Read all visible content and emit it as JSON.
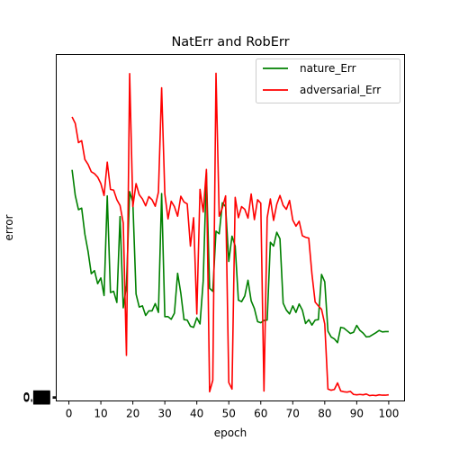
{
  "chart_data": {
    "type": "line",
    "title": "NatErr and RobErr",
    "xlabel": "epoch",
    "ylabel": "error",
    "xlim": [
      -3.95,
      104.95
    ],
    "ylim": [
      -0.004,
      0.9
    ],
    "xticks": [
      0,
      10,
      20,
      30,
      40,
      50,
      60,
      70,
      80,
      90,
      100
    ],
    "yticks": [
      0.003,
      0.005,
      0.007
    ],
    "ytick_labels": [
      "0.██",
      "0.██",
      "0.██"
    ],
    "grid": false,
    "legend": "top-right",
    "x": [
      1,
      2,
      3,
      4,
      5,
      6,
      7,
      8,
      9,
      10,
      11,
      12,
      13,
      14,
      15,
      16,
      17,
      18,
      19,
      20,
      21,
      22,
      23,
      24,
      25,
      26,
      27,
      28,
      29,
      30,
      31,
      32,
      33,
      34,
      35,
      36,
      37,
      38,
      39,
      40,
      41,
      42,
      43,
      44,
      45,
      46,
      47,
      48,
      49,
      50,
      51,
      52,
      53,
      54,
      55,
      56,
      57,
      58,
      59,
      60,
      61,
      62,
      63,
      64,
      65,
      66,
      67,
      68,
      69,
      70,
      71,
      72,
      73,
      74,
      75,
      76,
      77,
      78,
      79,
      80,
      81,
      82,
      83,
      84,
      85,
      86,
      87,
      88,
      89,
      90,
      91,
      92,
      93,
      94,
      95,
      96,
      97,
      98,
      99,
      100
    ],
    "series": [
      {
        "name": "nature_Err",
        "color": "#008000",
        "values": [
          0.599,
          0.532,
          0.495,
          0.499,
          0.431,
          0.386,
          0.328,
          0.336,
          0.302,
          0.317,
          0.271,
          0.531,
          0.279,
          0.282,
          0.253,
          0.477,
          0.239,
          0.297,
          0.542,
          0.515,
          0.275,
          0.241,
          0.244,
          0.219,
          0.231,
          0.231,
          0.25,
          0.227,
          0.537,
          0.216,
          0.216,
          0.209,
          0.225,
          0.329,
          0.277,
          0.208,
          0.207,
          0.191,
          0.188,
          0.213,
          0.197,
          0.309,
          0.592,
          0.29,
          0.282,
          0.439,
          0.432,
          0.513,
          0.503,
          0.36,
          0.426,
          0.4,
          0.259,
          0.255,
          0.27,
          0.311,
          0.257,
          0.237,
          0.203,
          0.2,
          0.206,
          0.207,
          0.41,
          0.4,
          0.436,
          0.419,
          0.251,
          0.233,
          0.223,
          0.244,
          0.227,
          0.249,
          0.233,
          0.198,
          0.208,
          0.194,
          0.207,
          0.208,
          0.326,
          0.307,
          0.178,
          0.163,
          0.158,
          0.148,
          0.188,
          0.186,
          0.179,
          0.172,
          0.175,
          0.193,
          0.18,
          0.173,
          0.163,
          0.164,
          0.169,
          0.174,
          0.18,
          0.176,
          0.177,
          0.177
        ]
      },
      {
        "name": "adversarial_Err",
        "color": "#ff0000",
        "values": [
          0.737,
          0.72,
          0.67,
          0.675,
          0.626,
          0.613,
          0.594,
          0.589,
          0.58,
          0.563,
          0.532,
          0.619,
          0.548,
          0.546,
          0.521,
          0.506,
          0.46,
          0.115,
          0.85,
          0.503,
          0.563,
          0.534,
          0.523,
          0.505,
          0.529,
          0.521,
          0.504,
          0.541,
          0.813,
          0.536,
          0.471,
          0.517,
          0.503,
          0.478,
          0.53,
          0.515,
          0.51,
          0.4,
          0.474,
          0.223,
          0.548,
          0.489,
          0.6,
          0.02,
          0.05,
          0.851,
          0.478,
          0.5,
          0.531,
          0.044,
          0.027,
          0.527,
          0.474,
          0.503,
          0.496,
          0.473,
          0.536,
          0.469,
          0.521,
          0.512,
          0.022,
          0.474,
          0.523,
          0.467,
          0.509,
          0.532,
          0.506,
          0.496,
          0.519,
          0.468,
          0.452,
          0.465,
          0.427,
          0.423,
          0.421,
          0.327,
          0.254,
          0.244,
          0.235,
          0.197,
          0.027,
          0.024,
          0.026,
          0.043,
          0.022,
          0.02,
          0.019,
          0.021,
          0.013,
          0.012,
          0.013,
          0.012,
          0.014,
          0.01,
          0.011,
          0.01,
          0.012,
          0.011,
          0.011,
          0.012
        ]
      }
    ]
  }
}
